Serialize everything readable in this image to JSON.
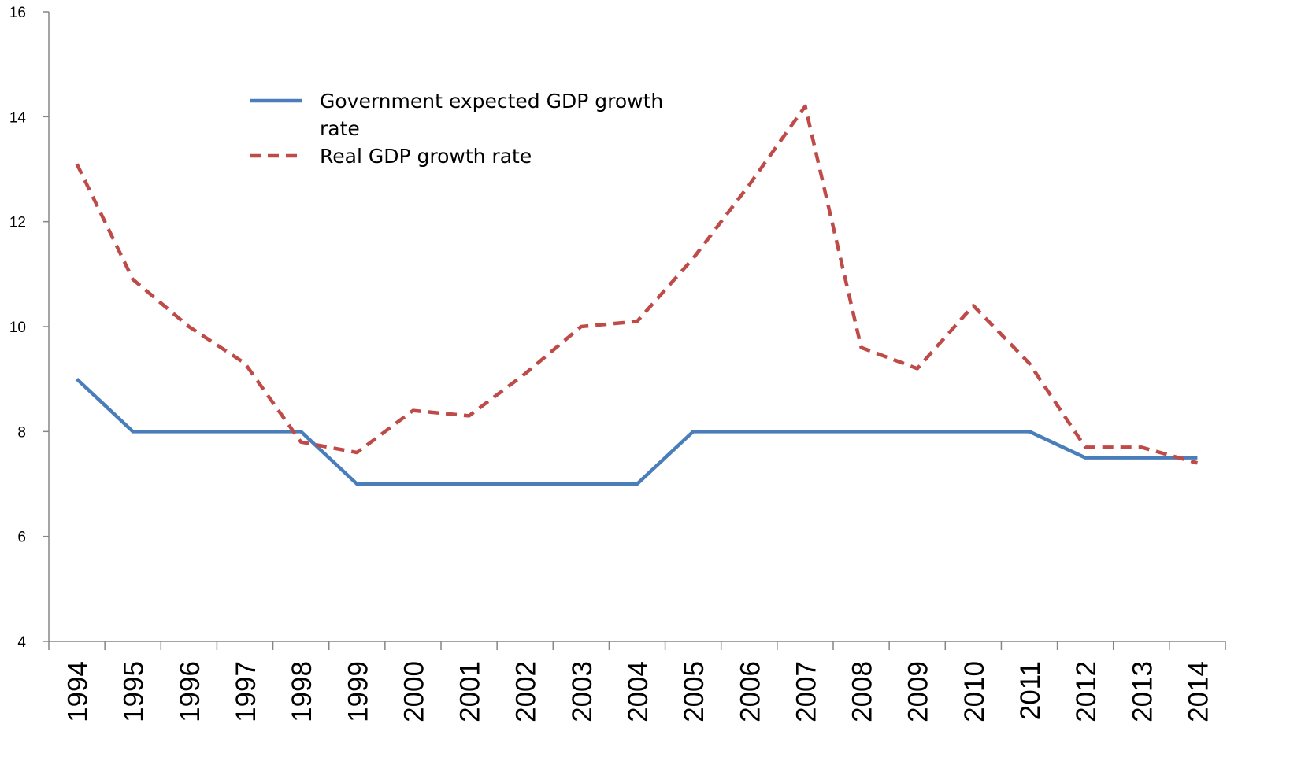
{
  "chart_data": {
    "type": "line",
    "title": "",
    "xlabel": "",
    "ylabel": "",
    "categories": [
      "1994",
      "1995",
      "1996",
      "1997",
      "1998",
      "1999",
      "2000",
      "2001",
      "2002",
      "2003",
      "2004",
      "2005",
      "2006",
      "2007",
      "2008",
      "2009",
      "2010",
      "2011",
      "2012",
      "2013",
      "2014"
    ],
    "ylim": [
      4,
      16
    ],
    "yticks": [
      4,
      6,
      8,
      10,
      12,
      14,
      16
    ],
    "grid": false,
    "legend_position": "upper-left inside plot",
    "series": [
      {
        "name": "Government expected GDP growth rate",
        "legend_lines": [
          "Government expected GDP growth",
          "rate"
        ],
        "color": "#4a7ebb",
        "style": "solid",
        "values": [
          9,
          8,
          8,
          8,
          8,
          7,
          7,
          7,
          7,
          7,
          7,
          8,
          8,
          8,
          8,
          8,
          8,
          8,
          7.5,
          7.5,
          7.5
        ]
      },
      {
        "name": "Real GDP growth rate",
        "legend_lines": [
          "Real GDP growth rate"
        ],
        "color": "#be4b48",
        "style": "dashed",
        "values": [
          13.1,
          10.9,
          10.0,
          9.3,
          7.8,
          7.6,
          8.4,
          8.3,
          9.1,
          10.0,
          10.1,
          11.3,
          12.7,
          14.2,
          9.6,
          9.2,
          10.4,
          9.3,
          7.7,
          7.7,
          7.4
        ]
      }
    ]
  }
}
